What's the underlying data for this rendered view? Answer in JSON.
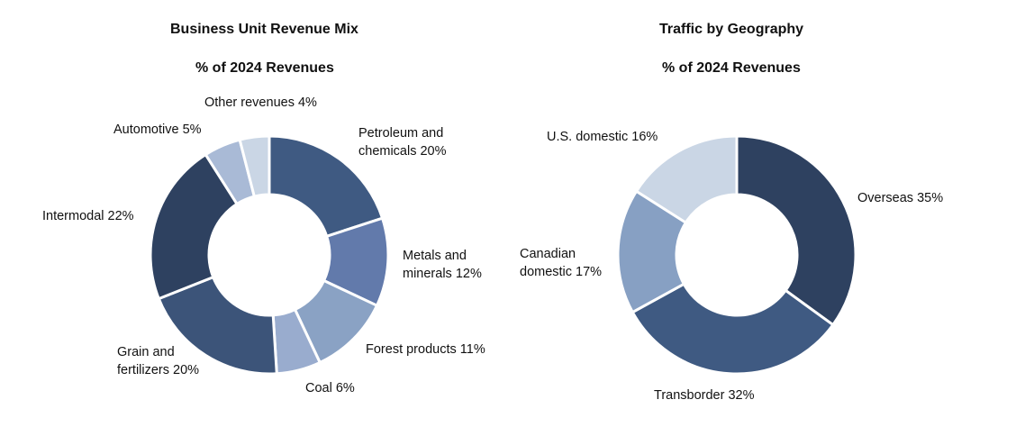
{
  "chart_data": [
    {
      "type": "pie",
      "variant": "donut",
      "title": "Business Unit Revenue Mix",
      "subtitle": "% of 2024 Revenues",
      "start_angle": "12 o'clock, clockwise",
      "unit": "%",
      "slices": [
        {
          "name": "Petroleum and chemicals",
          "label_lines": [
            "Petroleum and",
            "chemicals 20%"
          ],
          "value": 20,
          "color": "#3f5a82"
        },
        {
          "name": "Metals and minerals",
          "label_lines": [
            "Metals and",
            "minerals 12%"
          ],
          "value": 12,
          "color": "#627aab"
        },
        {
          "name": "Forest products",
          "label_lines": [
            "Forest products 11%"
          ],
          "value": 11,
          "color": "#8aa2c4"
        },
        {
          "name": "Coal",
          "label_lines": [
            "Coal 6%"
          ],
          "value": 6,
          "color": "#99acce"
        },
        {
          "name": "Grain and fertilizers",
          "label_lines": [
            "Grain and",
            "fertilizers 20%"
          ],
          "value": 20,
          "color": "#3c5479"
        },
        {
          "name": "Intermodal",
          "label_lines": [
            "Intermodal 22%"
          ],
          "value": 22,
          "color": "#2e4160"
        },
        {
          "name": "Automotive",
          "label_lines": [
            "Automotive 5%"
          ],
          "value": 5,
          "color": "#a9bad6"
        },
        {
          "name": "Other revenues",
          "label_lines": [
            "Other revenues 4%"
          ],
          "value": 4,
          "color": "#cad6e5"
        }
      ]
    },
    {
      "type": "pie",
      "variant": "donut",
      "title": "Traffic by Geography",
      "subtitle": "% of 2024 Revenues",
      "start_angle": "12 o'clock, clockwise",
      "unit": "%",
      "slices": [
        {
          "name": "Overseas",
          "label_lines": [
            "Overseas 35%"
          ],
          "value": 35,
          "color": "#2e4160"
        },
        {
          "name": "Transborder",
          "label_lines": [
            "Transborder 32%"
          ],
          "value": 32,
          "color": "#3f5a82"
        },
        {
          "name": "Canadian domestic",
          "label_lines": [
            "Canadian",
            "domestic 17%"
          ],
          "value": 17,
          "color": "#87a0c3"
        },
        {
          "name": "U.S. domestic",
          "label_lines": [
            "U.S. domestic 16%"
          ],
          "value": 16,
          "color": "#cad6e5"
        }
      ]
    }
  ]
}
